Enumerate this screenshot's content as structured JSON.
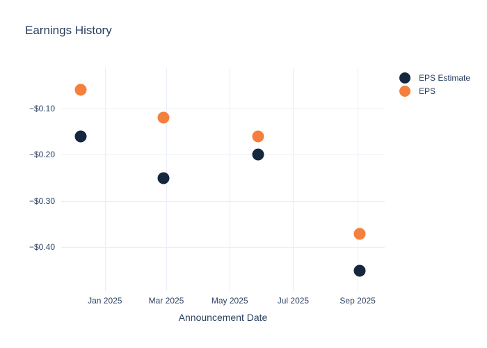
{
  "chart_data": {
    "type": "scatter",
    "title": "Earnings History",
    "xlabel": "Announcement Date",
    "ylabel": "",
    "grid": true,
    "legend_position": "right",
    "marker_size": 17,
    "x_ticks": [
      {
        "date": "2025-01-01",
        "label": "Jan 2025"
      },
      {
        "date": "2025-03-01",
        "label": "Mar 2025"
      },
      {
        "date": "2025-05-01",
        "label": "May 2025"
      },
      {
        "date": "2025-07-01",
        "label": "Jul 2025"
      },
      {
        "date": "2025-09-01",
        "label": "Sep 2025"
      }
    ],
    "y_ticks": [
      {
        "value": -0.1,
        "label": "−$0.10"
      },
      {
        "value": -0.2,
        "label": "−$0.20"
      },
      {
        "value": -0.3,
        "label": "−$0.30"
      },
      {
        "value": -0.4,
        "label": "−$0.40"
      }
    ],
    "xlim": [
      "2024-11-20",
      "2025-09-27"
    ],
    "ylim": [
      -0.494,
      -0.013
    ],
    "series": [
      {
        "name": "EPS Estimate",
        "color": "#15263F",
        "points": [
          {
            "x": "2024-12-09",
            "y": -0.16
          },
          {
            "x": "2025-02-26",
            "y": -0.25
          },
          {
            "x": "2025-05-28",
            "y": -0.2
          },
          {
            "x": "2025-09-03",
            "y": -0.45
          }
        ]
      },
      {
        "name": "EPS",
        "color": "#F5803E",
        "points": [
          {
            "x": "2024-12-09",
            "y": -0.06
          },
          {
            "x": "2025-02-26",
            "y": -0.12
          },
          {
            "x": "2025-05-28",
            "y": -0.16
          },
          {
            "x": "2025-09-03",
            "y": -0.37
          }
        ]
      }
    ],
    "colors": {
      "background": "#FFFFFF",
      "grid": "#E9EEF6",
      "text": "#2A3F5F"
    }
  }
}
